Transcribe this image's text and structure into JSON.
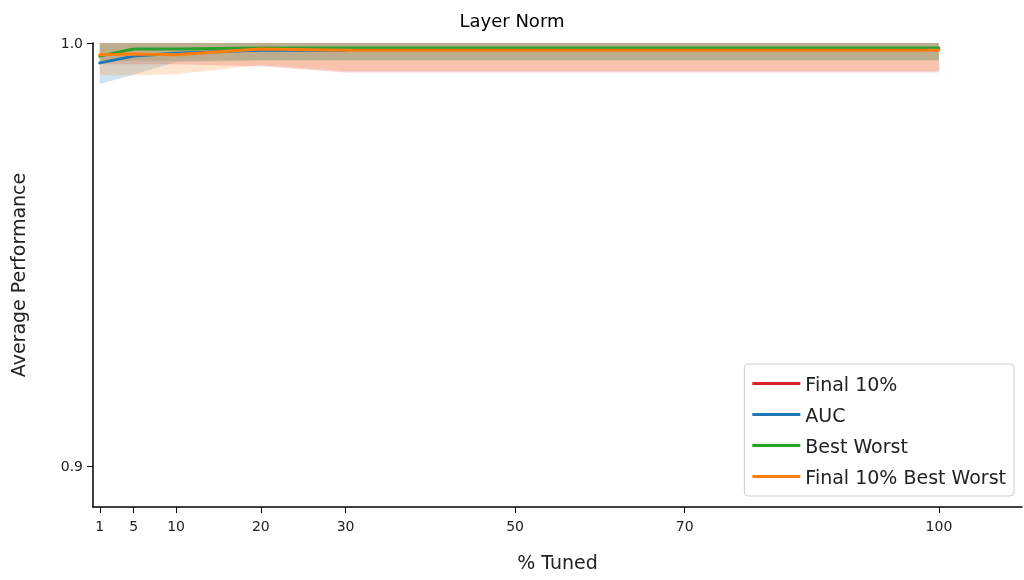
{
  "chart_data": {
    "type": "line",
    "title": "Layer Norm",
    "xlabel": "% Tuned",
    "ylabel": "Average Performance",
    "x": [
      1,
      5,
      10,
      20,
      30,
      50,
      70,
      100
    ],
    "series": [
      {
        "name": "Final 10%",
        "color": "#d62728",
        "values": [
          null,
          null,
          null,
          null,
          null,
          null,
          null,
          null
        ],
        "lower": [
          0.995,
          0.995,
          0.995,
          0.9945,
          0.993,
          0.993,
          0.993,
          0.993
        ],
        "upper": [
          1.0,
          1.0,
          1.0,
          1.0,
          1.0,
          1.0,
          1.0,
          1.0
        ]
      },
      {
        "name": "AUC",
        "color": "#1f77b4",
        "values": [
          0.9953,
          0.9969,
          0.9976,
          0.9983,
          0.9983,
          null,
          null,
          null
        ],
        "lower": [
          0.9903,
          0.9925,
          0.9955,
          0.996,
          0.996,
          0.996,
          0.996,
          0.996
        ],
        "upper": [
          1.0,
          1.0,
          1.0,
          1.0,
          1.0,
          1.0,
          1.0,
          1.0
        ]
      },
      {
        "name": "Best Worst",
        "color": "#2ca02c",
        "values": [
          0.9969,
          0.9986,
          0.9986,
          0.9988,
          0.9988,
          0.9988,
          0.9988,
          0.9988
        ],
        "lower": [
          0.9958,
          0.9958,
          0.9958,
          0.9958,
          0.9958,
          0.9958,
          0.9958,
          0.9958
        ],
        "upper": [
          1.0,
          1.0,
          1.0,
          1.0,
          1.0,
          1.0,
          1.0,
          1.0
        ]
      },
      {
        "name": "Final 10% Best Worst",
        "color": "#ff7f0e",
        "values": [
          0.9972,
          0.9974,
          0.9972,
          0.9986,
          0.9983,
          0.9983,
          0.9983,
          0.9983
        ],
        "lower": [
          0.9924,
          0.9924,
          0.9926,
          0.9948,
          0.9934,
          0.9934,
          0.9934,
          0.9934
        ],
        "upper": [
          1.0,
          1.0,
          1.0,
          1.0,
          1.0,
          1.0,
          1.0,
          1.0
        ]
      }
    ],
    "xlim": [
      0.2,
      109.8
    ],
    "xticks": [
      1,
      5,
      10,
      20,
      30,
      50,
      70,
      100
    ],
    "ylim": [
      0.8903,
      1.0
    ],
    "yticks": [
      0.9,
      {
        "value": 1.0,
        "label": "1.0"
      }
    ],
    "grid": false,
    "legend": "bottom right",
    "marker": "none",
    "line_style": "solid"
  }
}
